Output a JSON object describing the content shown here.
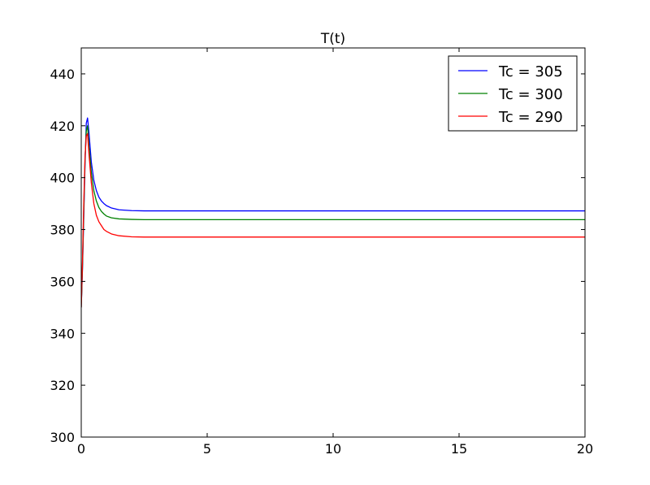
{
  "chart_data": {
    "type": "line",
    "title": "T(t)",
    "xlabel": "",
    "ylabel": "",
    "xlim": [
      0,
      20
    ],
    "ylim": [
      300,
      450
    ],
    "xticks": [
      0,
      5,
      10,
      15,
      20
    ],
    "yticks": [
      300,
      320,
      340,
      360,
      380,
      400,
      420,
      440
    ],
    "grid": false,
    "legend_position": "top-right",
    "series": [
      {
        "name": "Tc = 305",
        "color": "#0000ff",
        "x": [
          0,
          0.05,
          0.1,
          0.15,
          0.2,
          0.25,
          0.3,
          0.4,
          0.5,
          0.6,
          0.7,
          0.8,
          0.9,
          1.0,
          1.2,
          1.5,
          2.0,
          2.5,
          3.0,
          5.0,
          10.0,
          15.0,
          20.0
        ],
        "y": [
          350,
          365,
          385,
          405,
          421,
          423,
          418,
          406,
          399,
          395,
          392.5,
          391,
          390,
          389.2,
          388.3,
          387.6,
          387.3,
          387.2,
          387.2,
          387.2,
          387.2,
          387.2,
          387.2
        ]
      },
      {
        "name": "Tc = 300",
        "color": "#008000",
        "x": [
          0,
          0.05,
          0.1,
          0.15,
          0.2,
          0.25,
          0.3,
          0.4,
          0.5,
          0.6,
          0.7,
          0.8,
          0.9,
          1.0,
          1.2,
          1.5,
          2.0,
          2.5,
          3.0,
          5.0,
          10.0,
          15.0,
          20.0
        ],
        "y": [
          350,
          366,
          387,
          407,
          418,
          420,
          413,
          402,
          395,
          391,
          388.5,
          387,
          386,
          385.2,
          384.5,
          384.1,
          383.9,
          383.8,
          383.8,
          383.8,
          383.8,
          383.8,
          383.8
        ]
      },
      {
        "name": "Tc = 290",
        "color": "#ff0000",
        "x": [
          0,
          0.05,
          0.1,
          0.15,
          0.2,
          0.25,
          0.3,
          0.4,
          0.5,
          0.6,
          0.7,
          0.8,
          0.9,
          1.0,
          1.2,
          1.5,
          2.0,
          2.5,
          3.0,
          5.0,
          10.0,
          15.0,
          20.0
        ],
        "y": [
          350,
          368,
          390,
          408,
          416,
          417,
          410,
          398,
          390,
          385.5,
          383,
          381.5,
          380,
          379.3,
          378.3,
          377.6,
          377.2,
          377.1,
          377.1,
          377.1,
          377.1,
          377.1,
          377.1
        ]
      }
    ]
  }
}
